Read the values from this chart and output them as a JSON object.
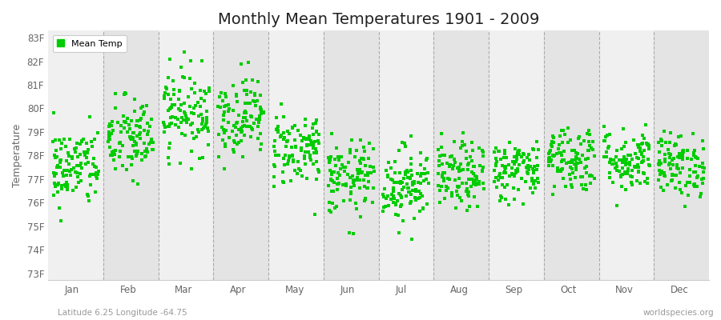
{
  "title": "Monthly Mean Temperatures 1901 - 2009",
  "ylabel": "Temperature",
  "subtitle_left": "Latitude 6.25 Longitude -64.75",
  "subtitle_right": "worldspecies.org",
  "legend_label": "Mean Temp",
  "dot_color": "#00cc00",
  "background_color": "#ffffff",
  "stripe_light": "#f0f0f0",
  "stripe_dark": "#e4e4e4",
  "ytick_labels": [
    "73F",
    "74F",
    "75F",
    "76F",
    "77F",
    "78F",
    "79F",
    "80F",
    "81F",
    "82F",
    "83F"
  ],
  "ytick_values": [
    73,
    74,
    75,
    76,
    77,
    78,
    79,
    80,
    81,
    82,
    83
  ],
  "ylim": [
    72.7,
    83.3
  ],
  "months": [
    "Jan",
    "Feb",
    "Mar",
    "Apr",
    "May",
    "Jun",
    "Jul",
    "Aug",
    "Sep",
    "Oct",
    "Nov",
    "Dec"
  ],
  "n_years": 109,
  "seed": 42,
  "monthly_means": [
    77.5,
    78.7,
    79.9,
    79.7,
    78.3,
    77.0,
    76.8,
    77.1,
    77.4,
    77.9,
    77.8,
    77.6
  ],
  "monthly_stds": [
    0.85,
    0.9,
    0.9,
    0.85,
    0.8,
    0.8,
    0.82,
    0.72,
    0.65,
    0.72,
    0.68,
    0.68
  ],
  "title_fontsize": 14,
  "axis_label_fontsize": 9,
  "tick_fontsize": 8.5,
  "legend_fontsize": 8,
  "subtitle_fontsize": 7.5
}
